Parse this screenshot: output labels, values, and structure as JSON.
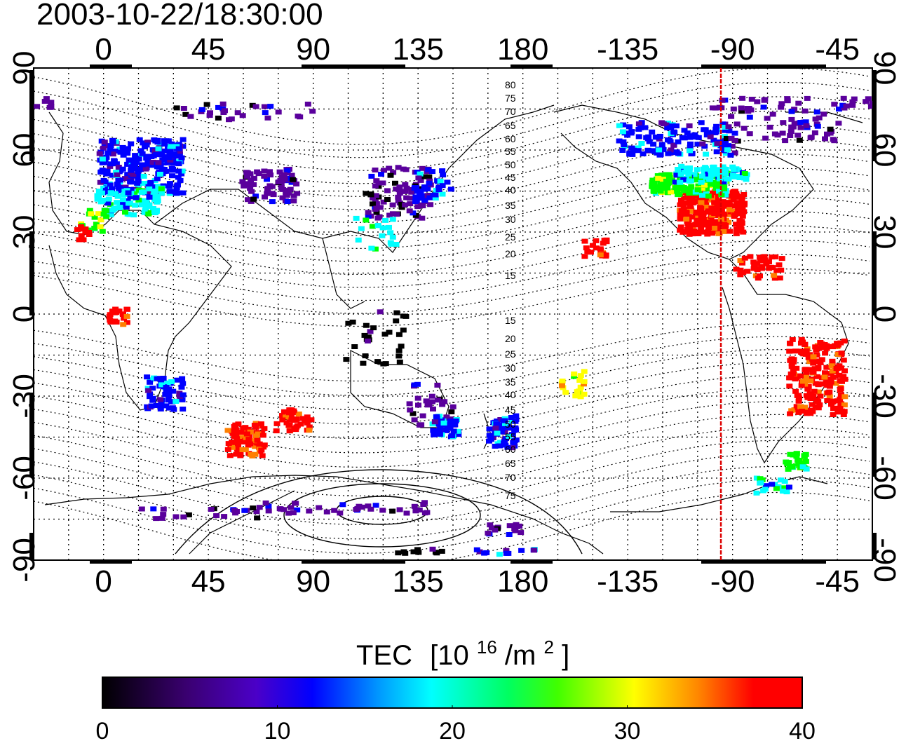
{
  "title": "2003-10-22/18:30:00",
  "map": {
    "lon_ticks_top": [
      "0",
      "45",
      "90",
      "135",
      "180",
      "-135",
      "-90",
      "-45"
    ],
    "lon_ticks_bottom": [
      "0",
      "45",
      "90",
      "135",
      "180",
      "-135",
      "-90",
      "-45"
    ],
    "lat_ticks_left": [
      "90",
      "60",
      "30",
      "0",
      "-30",
      "-60",
      "-90"
    ],
    "lat_ticks_right": [
      "90",
      "60",
      "30",
      "0",
      "-30",
      "-60",
      "-90"
    ],
    "marker_longitude": -95,
    "marker_color": "#dd0000",
    "contour_labels": [
      "80",
      "75",
      "70",
      "65",
      "60",
      "55",
      "50",
      "45",
      "40",
      "35",
      "30",
      "25",
      "20",
      "15",
      "15",
      "20",
      "25",
      "30",
      "35",
      "40",
      "45",
      "50",
      "55",
      "60",
      "65",
      "70",
      "75"
    ]
  },
  "colorbar": {
    "label_main": "TEC",
    "label_unit_open": "[10",
    "label_unit_exp": "16",
    "label_unit_mid": "/m",
    "label_unit_exp2": "2",
    "label_unit_close": "]",
    "ticks": [
      "0",
      "10",
      "20",
      "30",
      "40"
    ],
    "min": 0,
    "max": 40,
    "colors": [
      "#000000",
      "#5a009c",
      "#0000ff",
      "#00ffff",
      "#00ff00",
      "#ffff00",
      "#ff7f00",
      "#ff0000"
    ]
  }
}
